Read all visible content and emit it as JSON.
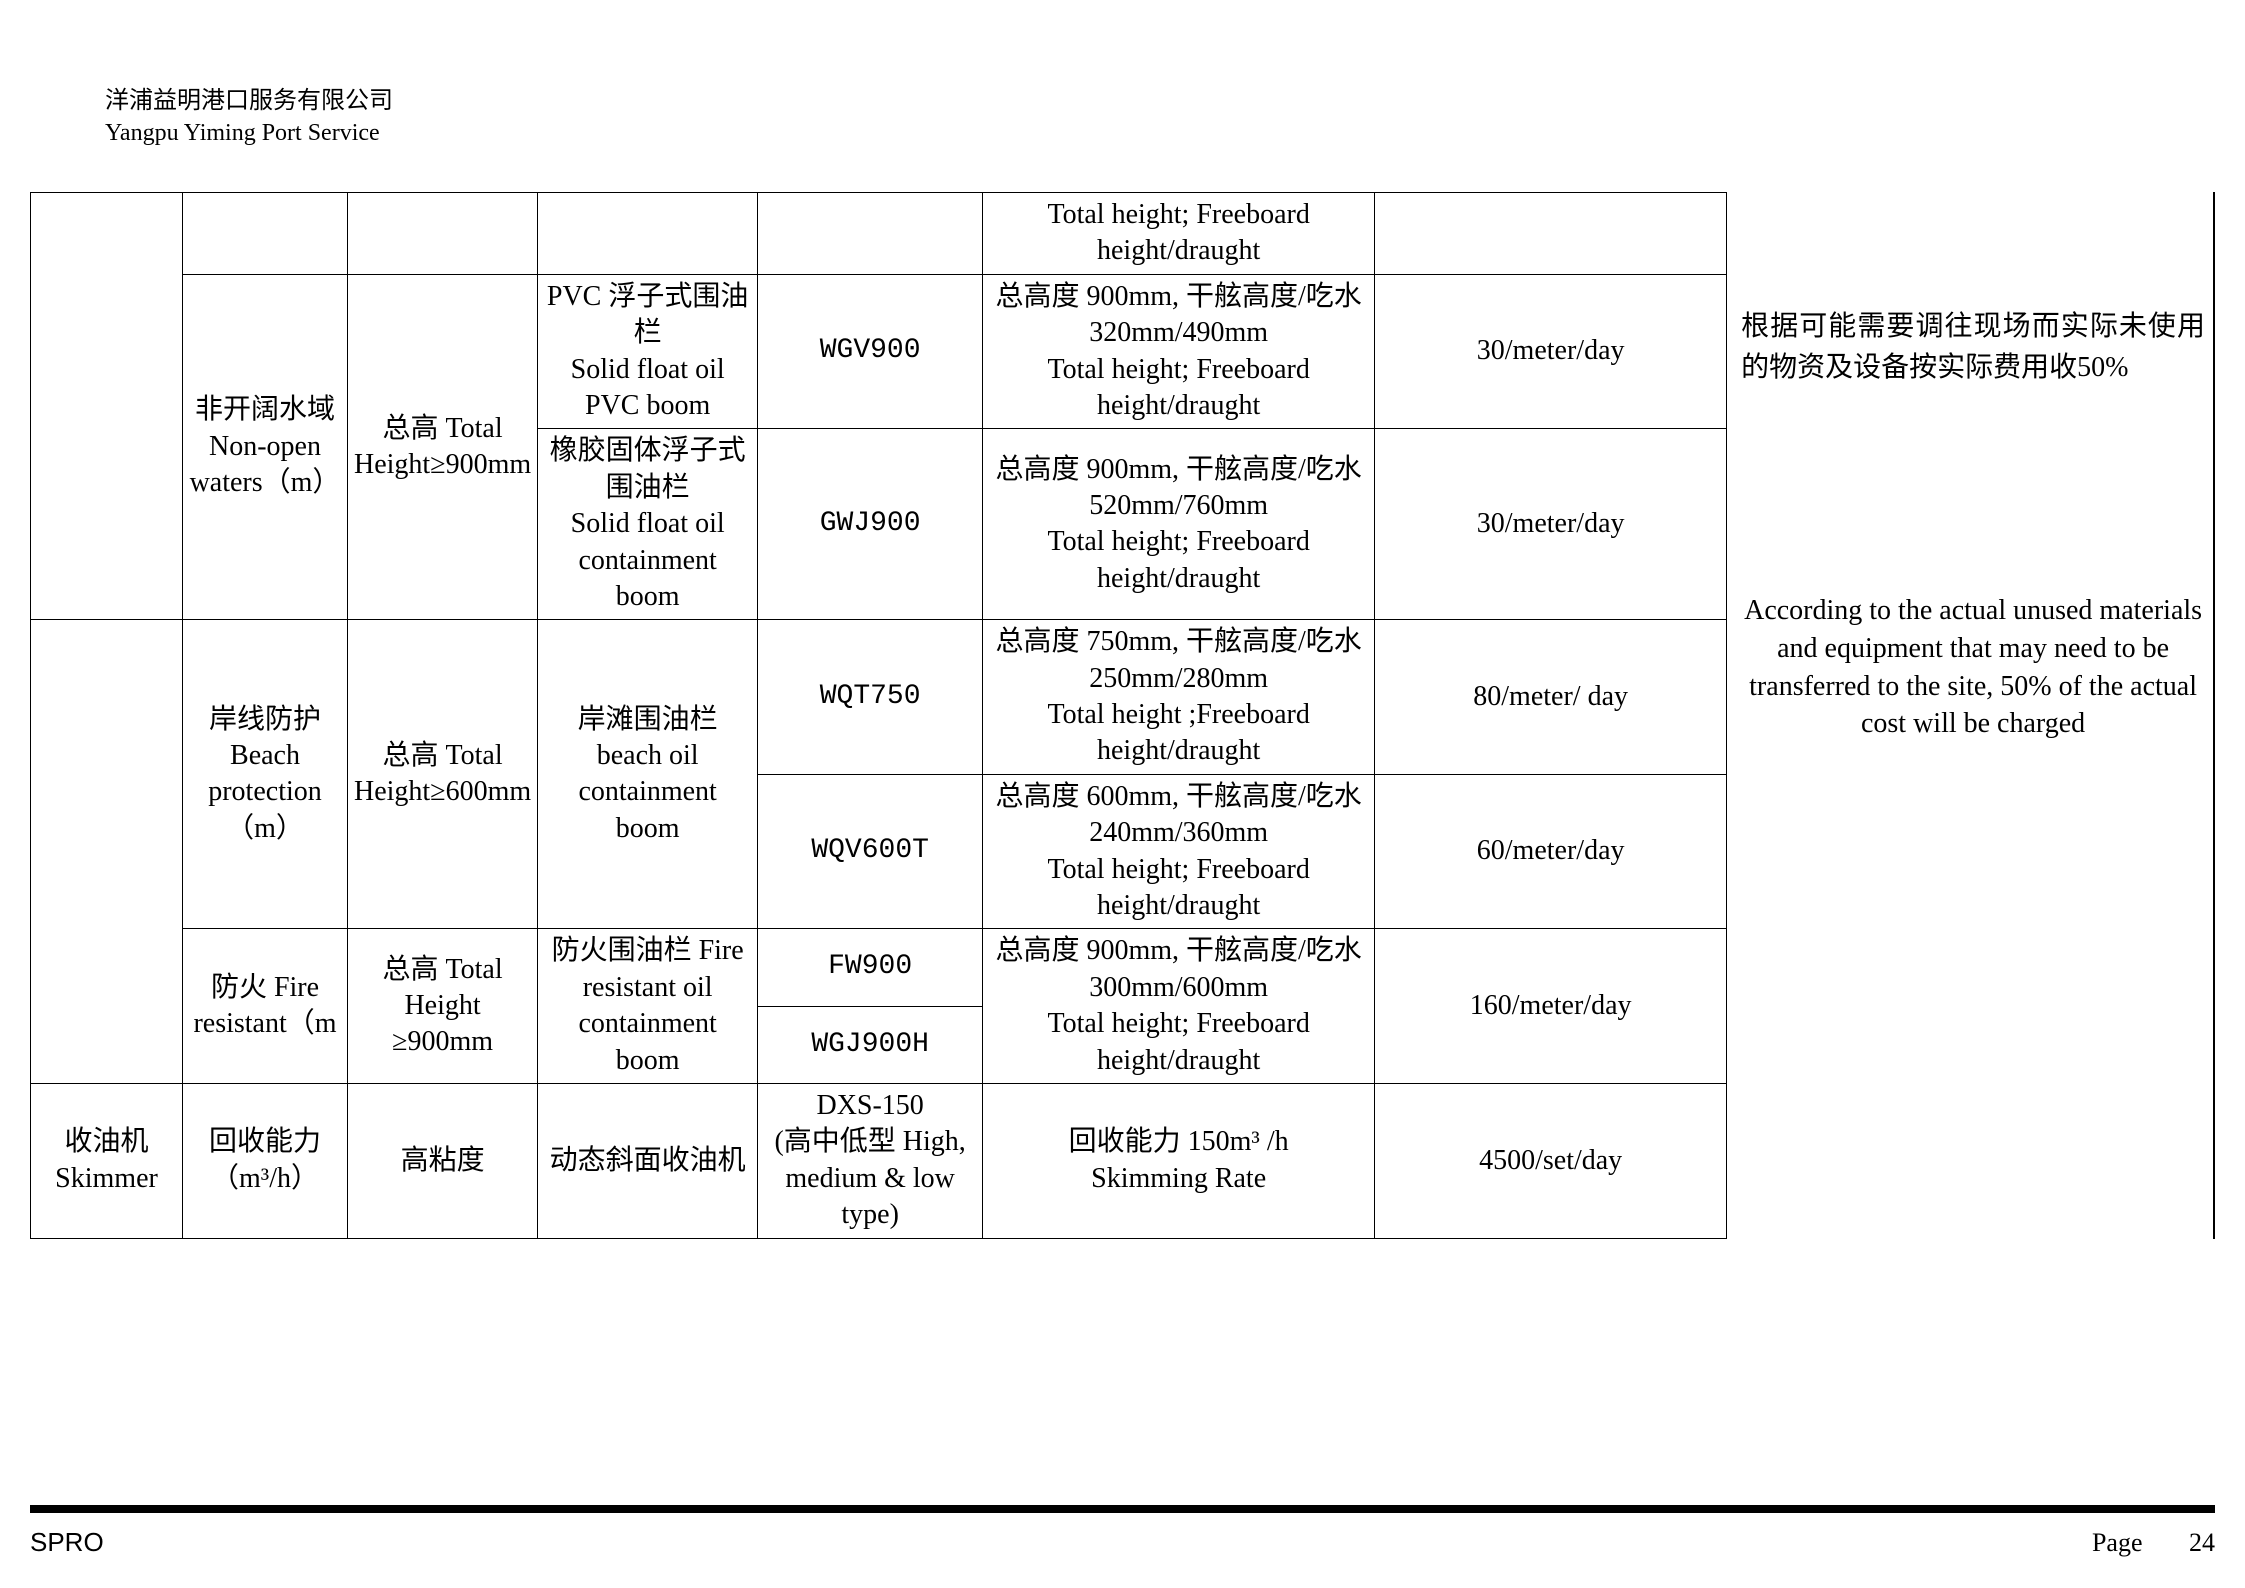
{
  "header": {
    "company_cn": "洋浦益明港口服务有限公司",
    "company_en": "Yangpu Yiming Port Service"
  },
  "table": {
    "row0": {
      "spec": "Total height; Freeboard height/draught"
    },
    "nonopen": {
      "label": "非开阔水域\nNon-open waters（m）",
      "height": "总高 Total Height≥900mm",
      "pvc": {
        "name": "PVC 浮子式围油栏\nSolid float oil PVC boom",
        "model": "WGV900",
        "spec": "总高度 900mm, 干舷高度/吃水320mm/490mm\nTotal height; Freeboard height/draught",
        "rate": "30/meter/day"
      },
      "rubber": {
        "name": "橡胶固体浮子式围油栏\nSolid float oil containment boom",
        "model": "GWJ900",
        "spec": "总高度 900mm, 干舷高度/吃水520mm/760mm\nTotal height; Freeboard height/draught",
        "rate": "30/meter/day"
      }
    },
    "beach": {
      "label": "岸线防护 Beach protection（m）",
      "height": "总高 Total Height≥600mm",
      "name": "岸滩围油栏 beach oil containment boom",
      "r1": {
        "model": "WQT750",
        "spec": "总高度 750mm, 干舷高度/吃水250mm/280mm\nTotal height ;Freeboard height/draught",
        "rate": "80/meter/ day"
      },
      "r2": {
        "model": "WQV600T",
        "spec": "总高度 600mm, 干舷高度/吃水240mm/360mm\nTotal height; Freeboard height/draught",
        "rate": "60/meter/day"
      }
    },
    "fire": {
      "label": "防火 Fire resistant（m",
      "height": "总高 Total Height ≥900mm",
      "name": "防火围油栏 Fire resistant oil containment boom",
      "m1": "FW900",
      "m2": "WGJ900H",
      "spec": "总高度 900mm, 干舷高度/吃水300mm/600mm\nTotal height; Freeboard height/draught",
      "rate": "160/meter/day"
    },
    "skimmer": {
      "cat": "收油机 Skimmer",
      "label": "回收能力（m³/h）",
      "visc": "高粘度",
      "name": "动态斜面收油机",
      "model": "DXS-150\n(高中低型 High, medium & low type)",
      "spec": "回收能力 150m³ /h\nSkimming Rate",
      "rate": "4500/set/day"
    }
  },
  "note": {
    "cn": "根据可能需要调往现场而实际未使用的物资及设备按实际费用收50%",
    "en": "According to the actual unused materials and equipment that may need to be transferred to the site, 50% of the actual cost will be charged"
  },
  "footer": {
    "left": "SPRO",
    "page_label": "Page",
    "page_num": "24"
  }
}
